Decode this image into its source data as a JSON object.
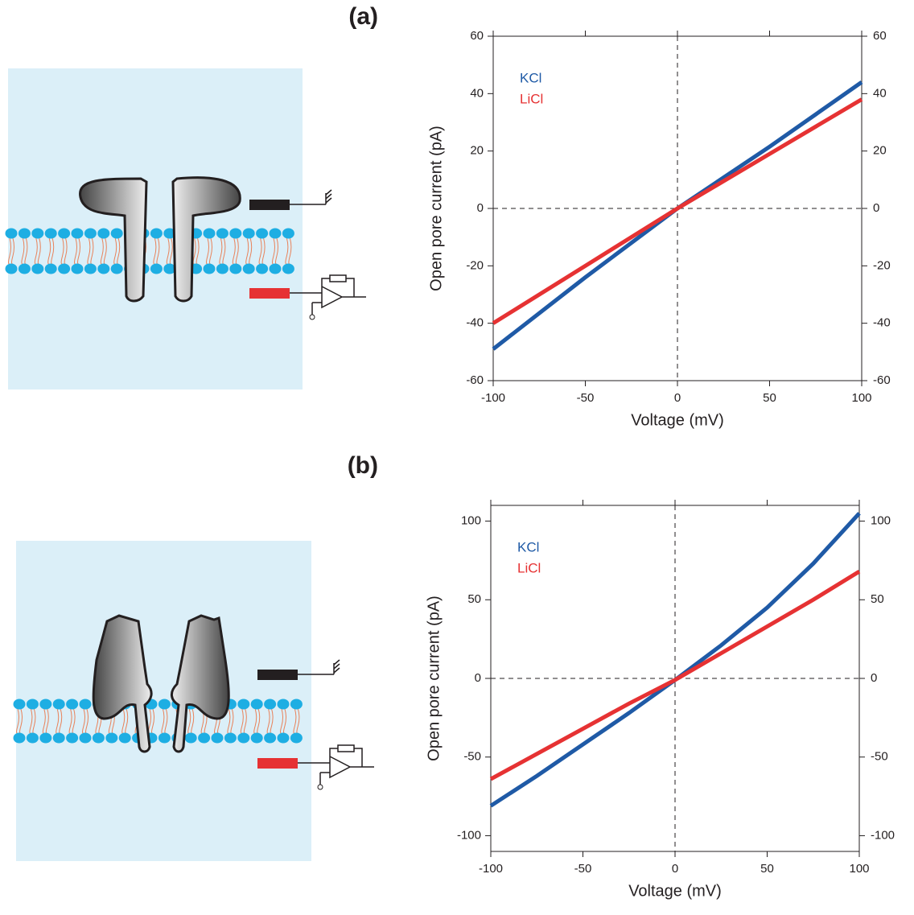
{
  "chart_data": [
    {
      "type": "line",
      "panel_label": "(a)",
      "x_label": "Voltage (mV)",
      "y_label": "Open pore current (pA)",
      "x": [
        -100,
        -50,
        0,
        50,
        100
      ],
      "series": [
        {
          "name": "KCl",
          "color": "#1f5aa6",
          "values": [
            -49,
            -24,
            0,
            21.5,
            44
          ]
        },
        {
          "name": "LiCl",
          "color": "#e63233",
          "values": [
            -40,
            -20,
            0,
            19,
            38
          ]
        }
      ],
      "xlim": [
        -100,
        100
      ],
      "xticks": [
        -100,
        -50,
        0,
        50,
        100
      ],
      "ylim": [
        -60,
        60
      ],
      "yticks": [
        -60,
        -40,
        -20,
        0,
        20,
        40,
        60
      ],
      "legend": "top-left"
    },
    {
      "type": "line",
      "panel_label": "(b)",
      "x_label": "Voltage (mV)",
      "y_label": "Open pore current (pA)",
      "x": [
        -100,
        -75,
        -50,
        -25,
        0,
        25,
        50,
        75,
        100
      ],
      "series": [
        {
          "name": "KCl",
          "color": "#1f5aa6",
          "values": [
            -81,
            -62,
            -42,
            -22,
            -1,
            21,
            45,
            73,
            105
          ]
        },
        {
          "name": "LiCl",
          "color": "#e63233",
          "values": [
            -64,
            -48,
            -32,
            -16,
            -1,
            16,
            33,
            50,
            68
          ]
        }
      ],
      "xlim": [
        -100,
        100
      ],
      "xticks": [
        -100,
        -50,
        0,
        50,
        100
      ],
      "ylim": [
        -110,
        110
      ],
      "yticks": [
        -100,
        -50,
        0,
        50,
        100
      ],
      "legend": "top-left"
    }
  ]
}
